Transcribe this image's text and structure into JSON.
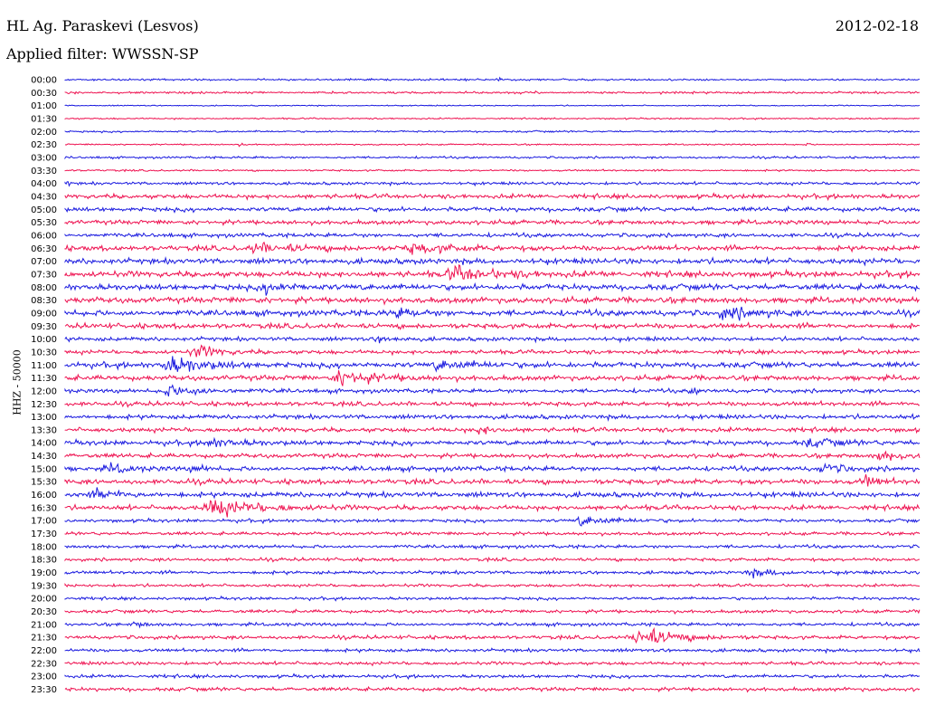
{
  "header": {
    "station": "HL Ag. Paraskevi (Lesvos)",
    "date": "2012-02-18",
    "filter": "Applied filter: WWSSN-SP"
  },
  "colors": {
    "even_trace": "#1a1adf",
    "odd_trace": "#ee1150"
  },
  "chart_data": {
    "type": "line",
    "title": "HL Ag. Paraskevi (Lesvos)",
    "subtitle": "Applied filter: WWSSN-SP",
    "date": "2012-02-18",
    "ylabel": "HHZ - 50000",
    "xlabel": "",
    "grid": false,
    "trace_minutes": 30,
    "row_labels": [
      "00:00",
      "00:30",
      "01:00",
      "01:30",
      "02:00",
      "02:30",
      "03:00",
      "03:30",
      "04:00",
      "04:30",
      "05:00",
      "05:30",
      "06:00",
      "06:30",
      "07:00",
      "07:30",
      "08:00",
      "08:30",
      "09:00",
      "09:30",
      "10:00",
      "10:30",
      "11:00",
      "11:30",
      "12:00",
      "12:30",
      "13:00",
      "13:30",
      "14:00",
      "14:30",
      "15:00",
      "15:30",
      "16:00",
      "16:30",
      "17:00",
      "17:30",
      "18:00",
      "18:30",
      "19:00",
      "19:30",
      "20:00",
      "20:30",
      "21:00",
      "21:30",
      "22:00",
      "22:30",
      "23:00",
      "23:30"
    ],
    "row_noise_level": [
      0.25,
      0.3,
      0.15,
      0.2,
      0.25,
      0.2,
      0.3,
      0.25,
      0.4,
      0.6,
      0.6,
      0.6,
      0.55,
      0.7,
      0.75,
      0.8,
      0.8,
      0.8,
      0.8,
      0.7,
      0.55,
      0.55,
      0.75,
      0.7,
      0.55,
      0.6,
      0.6,
      0.6,
      0.65,
      0.6,
      0.65,
      0.7,
      0.7,
      0.65,
      0.45,
      0.45,
      0.45,
      0.45,
      0.45,
      0.4,
      0.4,
      0.45,
      0.45,
      0.5,
      0.45,
      0.45,
      0.45,
      0.5
    ],
    "events": [
      {
        "row": 0,
        "minute": 15.2,
        "amplitude": 0.8,
        "duration_min": 0.1
      },
      {
        "row": 5,
        "minute": 6.2,
        "amplitude": 0.7,
        "duration_min": 0.1
      },
      {
        "row": 5,
        "minute": 26.0,
        "amplitude": 0.5,
        "duration_min": 0.2
      },
      {
        "row": 8,
        "minute": 0.1,
        "amplitude": 0.8,
        "duration_min": 0.1
      },
      {
        "row": 13,
        "minute": 6.5,
        "amplitude": 1.2,
        "duration_min": 3.5
      },
      {
        "row": 13,
        "minute": 12.0,
        "amplitude": 1.3,
        "duration_min": 3.0
      },
      {
        "row": 15,
        "minute": 13.5,
        "amplitude": 2.2,
        "duration_min": 3.0
      },
      {
        "row": 16,
        "minute": 7.0,
        "amplitude": 1.3,
        "duration_min": 2.0
      },
      {
        "row": 18,
        "minute": 11.5,
        "amplitude": 1.4,
        "duration_min": 1.5
      },
      {
        "row": 18,
        "minute": 23.0,
        "amplitude": 2.2,
        "duration_min": 2.0
      },
      {
        "row": 20,
        "minute": 11.0,
        "amplitude": 1.0,
        "duration_min": 1.0
      },
      {
        "row": 21,
        "minute": 4.5,
        "amplitude": 2.2,
        "duration_min": 1.5
      },
      {
        "row": 22,
        "minute": 3.5,
        "amplitude": 2.6,
        "duration_min": 2.5
      },
      {
        "row": 22,
        "minute": 13.0,
        "amplitude": 1.2,
        "duration_min": 2.5
      },
      {
        "row": 23,
        "minute": 9.5,
        "amplitude": 2.6,
        "duration_min": 2.5
      },
      {
        "row": 24,
        "minute": 3.5,
        "amplitude": 1.8,
        "duration_min": 2.5
      },
      {
        "row": 24,
        "minute": 22.0,
        "amplitude": 1.0,
        "duration_min": 0.5
      },
      {
        "row": 27,
        "minute": 14.5,
        "amplitude": 1.5,
        "duration_min": 0.8
      },
      {
        "row": 28,
        "minute": 5.0,
        "amplitude": 1.3,
        "duration_min": 2.0
      },
      {
        "row": 28,
        "minute": 26.0,
        "amplitude": 1.2,
        "duration_min": 2.0
      },
      {
        "row": 29,
        "minute": 28.5,
        "amplitude": 1.2,
        "duration_min": 2.5
      },
      {
        "row": 30,
        "minute": 1.5,
        "amplitude": 1.2,
        "duration_min": 1.5
      },
      {
        "row": 30,
        "minute": 4.5,
        "amplitude": 1.5,
        "duration_min": 0.6
      },
      {
        "row": 30,
        "minute": 26.5,
        "amplitude": 1.6,
        "duration_min": 1.5
      },
      {
        "row": 31,
        "minute": 28.0,
        "amplitude": 1.6,
        "duration_min": 1.0
      },
      {
        "row": 32,
        "minute": 1.0,
        "amplitude": 1.3,
        "duration_min": 2.0
      },
      {
        "row": 33,
        "minute": 5.0,
        "amplitude": 2.8,
        "duration_min": 3.0
      },
      {
        "row": 34,
        "minute": 18.0,
        "amplitude": 1.3,
        "duration_min": 2.5
      },
      {
        "row": 38,
        "minute": 24.0,
        "amplitude": 1.1,
        "duration_min": 2.0
      },
      {
        "row": 42,
        "minute": 2.5,
        "amplitude": 1.1,
        "duration_min": 0.6
      },
      {
        "row": 43,
        "minute": 20.0,
        "amplitude": 3.3,
        "duration_min": 2.5
      }
    ]
  }
}
